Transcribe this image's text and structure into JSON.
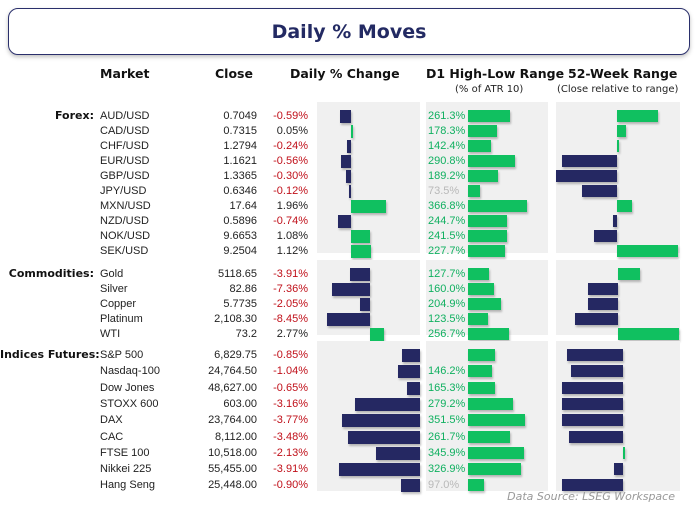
{
  "title": "Daily % Moves",
  "headers": {
    "market": "Market",
    "close": "Close",
    "change": "Daily % Change",
    "d1": "D1 High-Low Range",
    "d1_sub": "(% of ATR 10)",
    "wk52": "52-Week Range",
    "wk52_sub": "(Close relative to range)"
  },
  "colors": {
    "negative_bar": "#252862",
    "positive_bar": "#10c060",
    "negative_text": "#c0101a",
    "positive_text": "#222222",
    "d1_text": "#10b060",
    "d1_low_text": "#b8b8b8",
    "panel": "#f0f0f0",
    "title_border": "#2a2f6b"
  },
  "wk52_scale": "close position in 52-week range, -1 = low side, +1 = high side",
  "sections": [
    {
      "label": "Forex:",
      "rows": [
        {
          "market": "AUD/USD",
          "close": "0.7049",
          "change": "-0.59%",
          "chg": -0.59,
          "d1": 261.3,
          "d1_label": "261.3%",
          "wk": 0.67
        },
        {
          "market": "CAD/USD",
          "close": "0.7315",
          "change": "0.05%",
          "chg": 0.05,
          "d1": 178.3,
          "d1_label": "178.3%",
          "wk": 0.15
        },
        {
          "market": "CHF/USD",
          "close": "1.2794",
          "change": "-0.24%",
          "chg": -0.24,
          "d1": 142.4,
          "d1_label": "142.4%",
          "wk": 0.02
        },
        {
          "market": "EUR/USD",
          "close": "1.1621",
          "change": "-0.56%",
          "chg": -0.56,
          "d1": 290.8,
          "d1_label": "290.8%",
          "wk": -0.9
        },
        {
          "market": "GBP/USD",
          "close": "1.3365",
          "change": "-0.30%",
          "chg": -0.3,
          "d1": 189.2,
          "d1_label": "189.2%",
          "wk": -1.0
        },
        {
          "market": "JPY/USD",
          "close": "0.6346",
          "change": "-0.12%",
          "chg": -0.12,
          "d1": 73.5,
          "d1_label": "73.5%",
          "wk": -0.58
        },
        {
          "market": "MXN/USD",
          "close": "17.64",
          "change": "1.96%",
          "chg": 1.96,
          "d1": 366.8,
          "d1_label": "366.8%",
          "wk": 0.25
        },
        {
          "market": "NZD/USD",
          "close": "0.5896",
          "change": "-0.74%",
          "chg": -0.74,
          "d1": 244.7,
          "d1_label": "244.7%",
          "wk": -0.06
        },
        {
          "market": "NOK/USD",
          "close": "9.6653",
          "change": "1.08%",
          "chg": 1.08,
          "d1": 241.5,
          "d1_label": "241.5%",
          "wk": -0.38
        },
        {
          "market": "SEK/USD",
          "close": "9.2504",
          "change": "1.12%",
          "chg": 1.12,
          "d1": 227.7,
          "d1_label": "227.7%",
          "wk": 1.0
        }
      ]
    },
    {
      "label": "Commodities:",
      "rows": [
        {
          "market": "Gold",
          "close": "5118.65",
          "change": "-3.91%",
          "chg": -3.91,
          "d1": 127.7,
          "d1_label": "127.7%",
          "wk": 0.36
        },
        {
          "market": "Silver",
          "close": "82.86",
          "change": "-7.36%",
          "chg": -7.36,
          "d1": 160.0,
          "d1_label": "160.0%",
          "wk": -0.5
        },
        {
          "market": "Copper",
          "close": "5.7735",
          "change": "-2.05%",
          "chg": -2.05,
          "d1": 204.9,
          "d1_label": "204.9%",
          "wk": -0.5
        },
        {
          "market": "Platinum",
          "close": "2,108.30",
          "change": "-8.45%",
          "chg": -8.45,
          "d1": 123.5,
          "d1_label": "123.5%",
          "wk": -0.7
        },
        {
          "market": "WTI",
          "close": "73.2",
          "change": "2.77%",
          "chg": 2.77,
          "d1": 256.7,
          "d1_label": "256.7%",
          "wk": 1.0
        }
      ]
    },
    {
      "label": "Indices Futures:",
      "rows": [
        {
          "market": "S&P 500",
          "close": "6,829.75",
          "change": "-0.85%",
          "chg": -0.85,
          "d1": 165,
          "d1_label": "",
          "wk": -0.92
        },
        {
          "market": "Nasdaq-100",
          "close": "24,764.50",
          "change": "-1.04%",
          "chg": -1.04,
          "d1": 146.2,
          "d1_label": "146.2%",
          "wk": -0.85
        },
        {
          "market": "Dow Jones",
          "close": "48,627.00",
          "change": "-0.65%",
          "chg": -0.65,
          "d1": 165.3,
          "d1_label": "165.3%",
          "wk": -1.0
        },
        {
          "market": "STOXX 600",
          "close": "603.00",
          "change": "-3.16%",
          "chg": -3.16,
          "d1": 279.2,
          "d1_label": "279.2%",
          "wk": -1.0
        },
        {
          "market": "DAX",
          "close": "23,764.00",
          "change": "-3.77%",
          "chg": -3.77,
          "d1": 351.5,
          "d1_label": "351.5%",
          "wk": -1.0
        },
        {
          "market": "CAC",
          "close": "8,112.00",
          "change": "-3.48%",
          "chg": -3.48,
          "d1": 261.7,
          "d1_label": "261.7%",
          "wk": -0.88
        },
        {
          "market": "FTSE 100",
          "close": "10,518.00",
          "change": "-2.13%",
          "chg": -2.13,
          "d1": 345.9,
          "d1_label": "345.9%",
          "wk": 0.03
        },
        {
          "market": "Nikkei 225",
          "close": "55,455.00",
          "change": "-3.91%",
          "chg": -3.91,
          "d1": 326.9,
          "d1_label": "326.9%",
          "wk": -0.14
        },
        {
          "market": "Hang Seng",
          "close": "25,448.00",
          "change": "-0.90%",
          "chg": -0.9,
          "d1": 97.0,
          "d1_label": "97.0%",
          "wk": -1.0
        }
      ]
    }
  ],
  "source": "Data Source: LSEG Workspace"
}
